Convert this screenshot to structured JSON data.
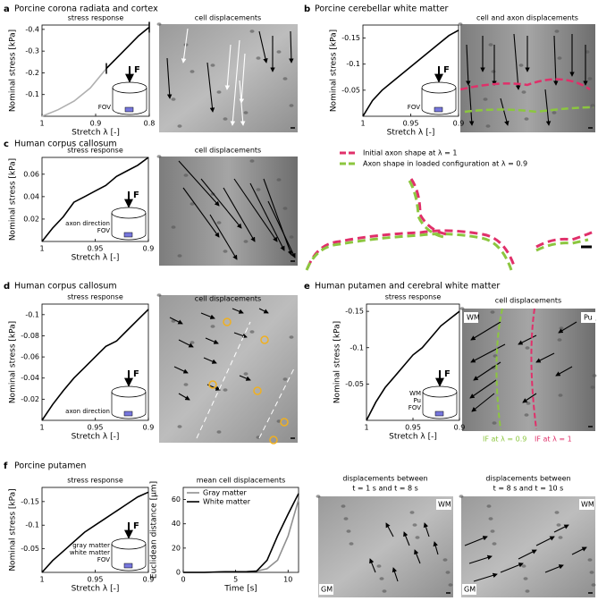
{
  "chart_data": [
    {
      "type": "line",
      "title": "stress response",
      "xlabel": "Stretch λ [-]",
      "ylabel": "Nominal stress [kPa]",
      "xlim": [
        1,
        0.8
      ],
      "xticks": [
        1,
        0.9,
        0.8
      ],
      "ylim": [
        0,
        -0.42
      ],
      "yticks": [
        -0.4,
        -0.3,
        -0.2,
        -0.1
      ],
      "series": [
        {
          "color": "#b0b0b0",
          "x": [
            1,
            0.97,
            0.94,
            0.91,
            0.88
          ],
          "values": [
            0,
            -0.03,
            -0.07,
            -0.13,
            -0.22
          ]
        },
        {
          "color": "#000000",
          "x": [
            0.88,
            0.86,
            0.84,
            0.82,
            0.8
          ],
          "values": [
            -0.22,
            -0.27,
            -0.32,
            -0.37,
            -0.41
          ]
        }
      ]
    },
    {
      "type": "line",
      "xlabel": "Stretch λ [-]",
      "ylabel": "Nominal stress [kPa]",
      "xlim": [
        1,
        0.9
      ],
      "xticks": [
        1,
        0.95,
        0.9
      ],
      "ylim": [
        0,
        -0.175
      ],
      "yticks": [
        -0.15,
        -0.1,
        -0.05
      ],
      "series": [
        {
          "color": "#000000",
          "x": [
            1,
            0.99,
            0.98,
            0.97,
            0.96,
            0.95,
            0.94,
            0.93,
            0.92,
            0.91,
            0.9
          ],
          "values": [
            0,
            -0.03,
            -0.05,
            -0.065,
            -0.08,
            -0.095,
            -0.11,
            -0.125,
            -0.14,
            -0.155,
            -0.165
          ]
        }
      ]
    },
    {
      "type": "line",
      "title": "stress response",
      "xlabel": "Stretch λ [-]",
      "ylabel": "Nominal stress [kPa]",
      "xlim": [
        1,
        0.9
      ],
      "xticks": [
        1,
        0.95,
        0.9
      ],
      "ylim": [
        0,
        0.075
      ],
      "yticks": [
        0.02,
        0.04,
        0.06
      ],
      "series": [
        {
          "color": "#000000",
          "x": [
            1,
            0.99,
            0.98,
            0.97,
            0.96,
            0.95,
            0.94,
            0.93,
            0.92,
            0.91,
            0.9
          ],
          "values": [
            0,
            0.012,
            0.022,
            0.035,
            0.04,
            0.045,
            0.05,
            0.058,
            0.063,
            0.068,
            0.075
          ]
        }
      ]
    },
    {
      "type": "line",
      "title": "stress response",
      "xlabel": "Stretch λ [-]",
      "ylabel": "Nominal stress [kPa]",
      "xlim": [
        1,
        0.9
      ],
      "xticks": [
        1,
        0.95,
        0.9
      ],
      "ylim": [
        0,
        -0.11
      ],
      "yticks": [
        -0.1,
        -0.08,
        -0.06,
        -0.04,
        -0.02
      ],
      "series": [
        {
          "color": "#000000",
          "x": [
            1,
            0.99,
            0.98,
            0.97,
            0.96,
            0.95,
            0.94,
            0.93,
            0.92,
            0.91,
            0.9
          ],
          "values": [
            0,
            -0.015,
            -0.028,
            -0.04,
            -0.05,
            -0.06,
            -0.07,
            -0.075,
            -0.085,
            -0.095,
            -0.105
          ]
        }
      ]
    },
    {
      "type": "line",
      "title": "stress response",
      "xlabel": "Stretch λ [-]",
      "ylabel": "Nominal stress [kPa]",
      "xlim": [
        1,
        0.9
      ],
      "xticks": [
        1,
        0.95,
        0.9
      ],
      "ylim": [
        0,
        -0.16
      ],
      "yticks": [
        -0.15,
        -0.1,
        -0.05
      ],
      "series": [
        {
          "color": "#000000",
          "x": [
            1,
            0.99,
            0.98,
            0.97,
            0.96,
            0.95,
            0.94,
            0.93,
            0.92,
            0.91,
            0.9
          ],
          "values": [
            0,
            -0.025,
            -0.045,
            -0.06,
            -0.075,
            -0.09,
            -0.1,
            -0.115,
            -0.13,
            -0.14,
            -0.15
          ]
        }
      ]
    },
    {
      "type": "line",
      "title": "stress response",
      "xlabel": "Stretch λ [-]",
      "ylabel": "Nominal stress [kPa]",
      "xlim": [
        1,
        0.9
      ],
      "xticks": [
        1,
        0.95,
        0.9
      ],
      "ylim": [
        0,
        -0.18
      ],
      "yticks": [
        -0.15,
        -0.1,
        -0.05
      ],
      "series": [
        {
          "color": "#000000",
          "x": [
            1,
            0.99,
            0.98,
            0.97,
            0.96,
            0.95,
            0.94,
            0.93,
            0.92,
            0.91,
            0.9
          ],
          "values": [
            0,
            -0.025,
            -0.045,
            -0.065,
            -0.085,
            -0.1,
            -0.115,
            -0.13,
            -0.145,
            -0.16,
            -0.17
          ]
        }
      ]
    },
    {
      "type": "line",
      "title": "mean cell displacements",
      "xlabel": "Time [s]",
      "ylabel": "Euclidean distance [μm]",
      "xlim": [
        0,
        11
      ],
      "xticks": [
        0,
        5,
        10
      ],
      "ylim": [
        0,
        70
      ],
      "yticks": [
        0,
        20,
        40,
        60
      ],
      "legend": "upper left",
      "series": [
        {
          "name": "Gray matter",
          "color": "#909090",
          "x": [
            0,
            2,
            4,
            6,
            7,
            8,
            9,
            10,
            11
          ],
          "values": [
            0,
            0,
            0.5,
            0.5,
            1,
            3,
            10,
            30,
            60
          ]
        },
        {
          "name": "White matter",
          "color": "#000000",
          "x": [
            0,
            2,
            4,
            6,
            7,
            8,
            9,
            10,
            11
          ],
          "values": [
            0,
            0,
            0.5,
            0.5,
            1,
            10,
            30,
            48,
            65
          ]
        }
      ]
    }
  ],
  "panels": [
    {
      "letter": "a",
      "title": "Porcine corona radiata and cortex",
      "image_title": "cell displacements",
      "inset": [
        "F",
        "FOV"
      ]
    },
    {
      "letter": "b",
      "title": "Porcine cerebellar white matter",
      "image_title": "cell and axon displacements",
      "inset": [
        "F",
        "FOV"
      ]
    },
    {
      "letter": "c",
      "title": "Human corpus callosum",
      "image_title": "cell displacements",
      "inset": [
        "F",
        "axon direction",
        "FOV"
      ],
      "legend": [
        "Initial axon shape at λ = 1",
        "Axon shape in loaded configuration at λ = 0.9"
      ]
    },
    {
      "letter": "d",
      "title": "Human corpus callosum",
      "image_title": "cell displacements",
      "inset": [
        "F",
        "axon direction"
      ]
    },
    {
      "letter": "e",
      "title": "Human putamen and cerebral white matter",
      "image_title": "cell displacements",
      "inset": [
        "F",
        "WM",
        "Pu",
        "FOV"
      ],
      "image_labels": [
        "WM",
        "Pu"
      ],
      "captions": [
        "IF at λ = 0.9",
        "IF at λ = 1"
      ]
    },
    {
      "letter": "f",
      "title": "Porcine putamen",
      "inset": [
        "F",
        "gray matter",
        "white matter",
        "FOV"
      ],
      "images": [
        {
          "title": [
            "displacements between",
            "t = 1 s and t = 8 s"
          ],
          "labels": [
            "WM",
            "GM"
          ]
        },
        {
          "title": [
            "displacements between",
            "t = 8 s and t = 10 s"
          ],
          "labels": [
            "WM",
            "GM"
          ]
        }
      ]
    }
  ]
}
